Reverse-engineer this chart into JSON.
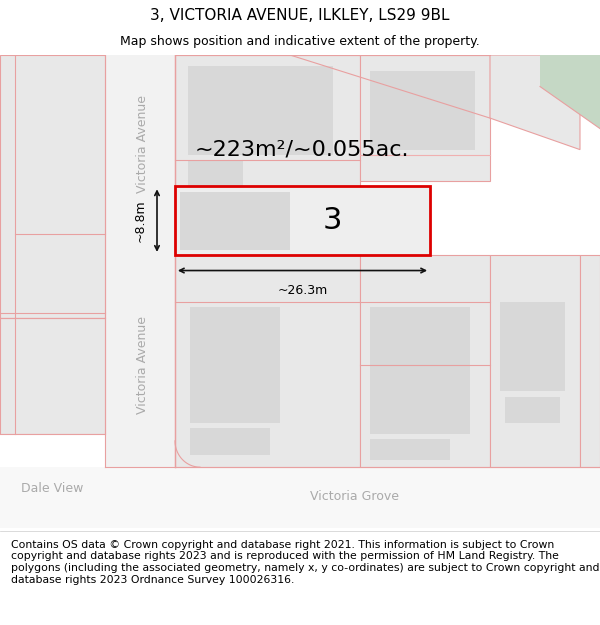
{
  "title": "3, VICTORIA AVENUE, ILKLEY, LS29 9BL",
  "subtitle": "Map shows position and indicative extent of the property.",
  "footer": "Contains OS data © Crown copyright and database right 2021. This information is subject to Crown copyright and database rights 2023 and is reproduced with the permission of HM Land Registry. The polygons (including the associated geometry, namely x, y co-ordinates) are subject to Crown copyright and database rights 2023 Ordnance Survey 100026316.",
  "area_text": "~223m²/~0.055ac.",
  "width_text": "~26.3m",
  "height_text": "~8.8m",
  "number_text": "3",
  "street_upper_text": "Victoria Avenue",
  "street_lower_text": "Victoria Avenue",
  "dale_view_text": "Dale View",
  "victoria_grove_text": "Victoria Grove",
  "bg_color": "#ffffff",
  "map_bg": "#ffffff",
  "road_bg": "#f7f7f7",
  "plot_fill": "#e8e8e8",
  "building_fill": "#d8d8d8",
  "red_line": "#dd0000",
  "pink_line": "#e8a0a0",
  "pink_line2": "#f0b0b0",
  "green_fill": "#c5d8c5",
  "label_color": "#aaaaaa",
  "dim_color": "#111111",
  "title_fs": 11,
  "subtitle_fs": 9,
  "footer_fs": 7.8,
  "area_fs": 16,
  "number_fs": 22,
  "street_fs": 9,
  "dim_fs": 9
}
